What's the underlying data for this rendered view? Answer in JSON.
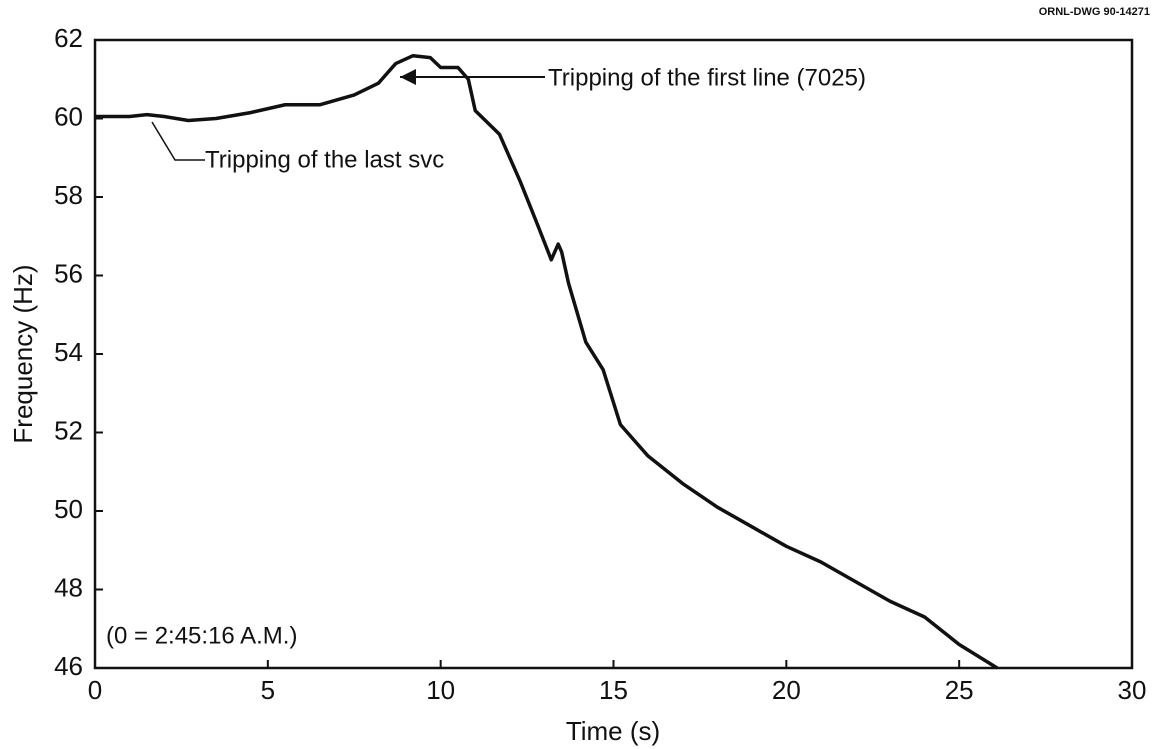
{
  "chart_data": {
    "type": "line",
    "drawing_id": "ORNL-DWG 90-14271",
    "xlabel": "Time (s)",
    "ylabel": "Frequency (Hz)",
    "annotations": [
      "Tripping of the first line (7025)",
      "Tripping of the last svc",
      "(0 = 2:45:16 A.M.)"
    ],
    "x": [
      0,
      1,
      1.5,
      2,
      2.7,
      3.5,
      4.5,
      5.5,
      6.5,
      7.5,
      8.2,
      8.7,
      9.2,
      9.7,
      10,
      10.5,
      10.8,
      11,
      11.7,
      12.3,
      12.8,
      13.2,
      13.4,
      13.5,
      13.7,
      14.2,
      14.7,
      15.2,
      16,
      17,
      18,
      19,
      20,
      21,
      22,
      23,
      24,
      25,
      26.1
    ],
    "series": [
      {
        "name": "Frequency",
        "color": "#111111",
        "values": [
          60.05,
          60.05,
          60.1,
          60.05,
          59.95,
          60.0,
          60.15,
          60.35,
          60.35,
          60.6,
          60.9,
          61.4,
          61.6,
          61.55,
          61.3,
          61.3,
          61.0,
          60.2,
          59.6,
          58.4,
          57.3,
          56.4,
          56.8,
          56.6,
          55.8,
          54.3,
          53.6,
          52.2,
          51.4,
          50.7,
          50.1,
          49.6,
          49.1,
          48.7,
          48.2,
          47.7,
          47.3,
          46.6,
          46.0
        ]
      }
    ],
    "xlim": [
      0,
      30
    ],
    "xticks": [
      0,
      5,
      10,
      15,
      20,
      25,
      30
    ],
    "ylim": [
      46,
      62
    ],
    "yticks": [
      46,
      48,
      50,
      52,
      54,
      56,
      58,
      60,
      62
    ],
    "grid": false
  }
}
